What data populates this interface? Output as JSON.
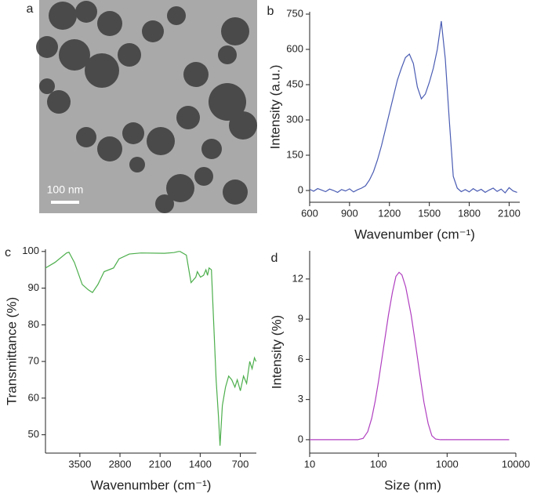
{
  "chart_data": [
    {
      "type": "image",
      "label": "a",
      "scale_bar": "100 nm"
    },
    {
      "type": "line",
      "label": "b",
      "xlabel": "Wavenumber (cm⁻¹)",
      "ylabel": "Intensity (a.u.)",
      "color": "#4a5cb3",
      "x": [
        600,
        630,
        660,
        690,
        720,
        750,
        780,
        810,
        840,
        870,
        900,
        930,
        960,
        990,
        1020,
        1050,
        1080,
        1110,
        1140,
        1170,
        1200,
        1230,
        1260,
        1290,
        1320,
        1350,
        1380,
        1410,
        1440,
        1470,
        1500,
        1530,
        1560,
        1590,
        1620,
        1650,
        1680,
        1710,
        1740,
        1770,
        1800,
        1830,
        1860,
        1890,
        1920,
        1950,
        1980,
        2010,
        2040,
        2070,
        2100,
        2130,
        2160
      ],
      "values": [
        5,
        -3,
        8,
        2,
        -5,
        6,
        0,
        -8,
        4,
        -2,
        7,
        -6,
        3,
        10,
        20,
        45,
        80,
        130,
        190,
        260,
        330,
        400,
        470,
        520,
        565,
        580,
        540,
        440,
        390,
        410,
        460,
        520,
        600,
        720,
        560,
        300,
        60,
        10,
        -5,
        4,
        -6,
        8,
        -3,
        5,
        -8,
        2,
        10,
        -4,
        6,
        -10,
        12,
        -2,
        -8
      ],
      "xlim": [
        600,
        2180
      ],
      "ylim": [
        -50,
        760
      ],
      "xticks": [
        600,
        900,
        1200,
        1500,
        1800,
        2100
      ],
      "yticks": [
        0,
        150,
        300,
        450,
        600,
        750
      ]
    },
    {
      "type": "line",
      "label": "c",
      "xlabel": "Wavenumber (cm⁻¹)",
      "ylabel": "Transmittance (%)",
      "color": "#4cae4c",
      "x": [
        4100,
        3936,
        3731,
        3690,
        3595,
        3458,
        3349,
        3280,
        3185,
        3076,
        2912,
        2816,
        2638,
        2433,
        2024,
        1860,
        1778,
        1750,
        1641,
        1587,
        1559,
        1477,
        1450,
        1395,
        1341,
        1300,
        1272,
        1245,
        1204,
        1163,
        1122,
        1081,
        1054,
        1013,
        958,
        903,
        849,
        794,
        753,
        699,
        644,
        590,
        535,
        494,
        453,
        425
      ],
      "values": [
        95.5,
        97,
        99.6,
        99.8,
        97,
        91,
        89.5,
        88.8,
        91,
        94.5,
        95.5,
        98,
        99.3,
        99.6,
        99.5,
        99.7,
        100,
        100,
        99,
        94,
        91.5,
        93,
        94.5,
        93,
        93.5,
        95,
        93.5,
        95.5,
        95,
        80,
        65,
        55,
        47,
        58,
        63,
        66,
        65,
        63,
        65,
        62,
        66,
        64,
        70,
        68,
        71,
        70
      ],
      "xlim": [
        4100,
        420
      ],
      "ylim": [
        45,
        100.6
      ],
      "xticks": [
        3500,
        2800,
        2100,
        1400,
        700
      ],
      "yticks": [
        50,
        60,
        70,
        80,
        90,
        100
      ]
    },
    {
      "type": "line",
      "label": "d",
      "xlabel": "Size (nm)",
      "ylabel": "Intensity (%)",
      "color": "#b03fc0",
      "xscale": "log",
      "x": [
        10,
        50,
        60,
        70,
        80,
        90,
        100,
        120,
        140,
        160,
        180,
        200,
        220,
        250,
        300,
        350,
        400,
        460,
        530,
        600,
        680,
        800,
        1000,
        5000,
        8000
      ],
      "values": [
        0,
        0,
        0.1,
        0.6,
        1.6,
        2.9,
        4.3,
        7.0,
        9.3,
        11.0,
        12.2,
        12.5,
        12.3,
        11.4,
        9.3,
        7.0,
        4.9,
        2.8,
        1.2,
        0.3,
        0.05,
        0,
        0,
        0,
        0
      ],
      "xlim": [
        10,
        10000
      ],
      "ylim": [
        -1,
        14.1
      ],
      "xticks": [
        10,
        100,
        1000,
        10000
      ],
      "yticks": [
        0,
        3,
        6,
        9,
        12
      ]
    }
  ]
}
